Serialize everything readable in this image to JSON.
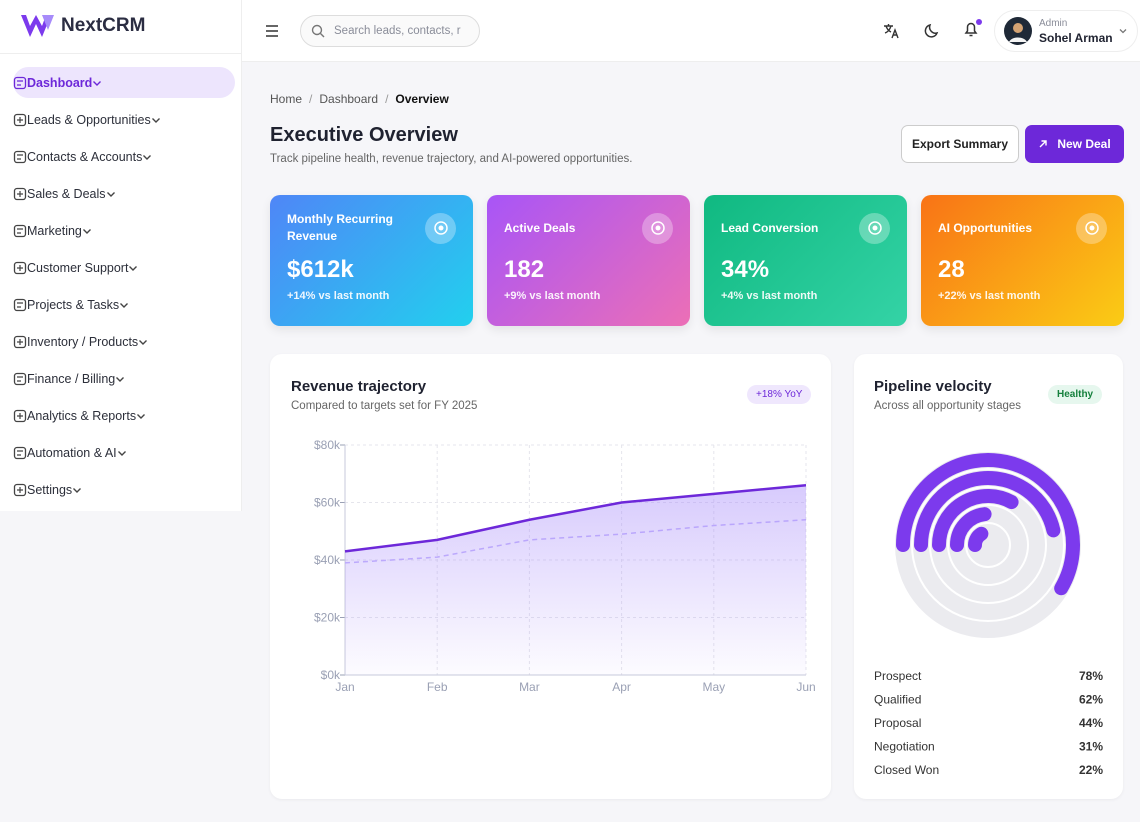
{
  "brand": "NextCRM",
  "search_placeholder": "Search leads, contacts, r",
  "user": {
    "role": "Admin",
    "name": "Sohel Arman"
  },
  "nav": [
    "Dashboard",
    "Leads & Opportunities",
    "Contacts & Accounts",
    "Sales & Deals",
    "Marketing",
    "Customer Support",
    "Projects & Tasks",
    "Inventory / Products",
    "Finance / Billing",
    "Analytics & Reports",
    "Automation & AI",
    "Settings"
  ],
  "breadcrumb": [
    "Home",
    "Dashboard",
    "Overview"
  ],
  "header": {
    "title": "Executive Overview",
    "subtitle": "Track pipeline health, revenue trajectory, and AI-powered opportunities.",
    "actions": [
      "Export Summary",
      "New Deal"
    ]
  },
  "kpis": [
    {
      "label": "Monthly Recurring Revenue",
      "value": "$612k",
      "change": "+14% vs last month"
    },
    {
      "label": "Active Deals",
      "value": "182",
      "change": "+9% vs last month"
    },
    {
      "label": "Lead Conversion",
      "value": "34%",
      "change": "+4% vs last month"
    },
    {
      "label": "AI Opportunities",
      "value": "28",
      "change": "+22% vs last month"
    }
  ],
  "chart_data": [
    {
      "type": "line",
      "title": "Revenue trajectory",
      "subtitle": "Compared to targets set for FY 2025",
      "badge": "+18% YoY",
      "categories": [
        "Jan",
        "Feb",
        "Mar",
        "Apr",
        "May",
        "Jun"
      ],
      "series": [
        {
          "color": "#6d28d9",
          "values": [
            43000,
            47000,
            54000,
            60000,
            63000,
            66000
          ]
        },
        {
          "color": "#c4b5fd",
          "values": [
            39000,
            41000,
            47000,
            49000,
            52000,
            54000
          ]
        }
      ],
      "ylim": [
        0,
        80000
      ],
      "yticks": [
        {
          "value": 0,
          "label": "$0k"
        },
        {
          "value": 20000,
          "label": "$20k"
        },
        {
          "value": 40000,
          "label": "$40k"
        },
        {
          "value": 60000,
          "label": "$60k"
        },
        {
          "value": 80000,
          "label": "$80k"
        }
      ],
      "grid": true
    },
    {
      "type": "radial_bar",
      "title": "Pipeline velocity",
      "subtitle": "Across all opportunity stages",
      "badge": "Healthy",
      "categories": [
        "Prospect",
        "Qualified",
        "Proposal",
        "Negotiation",
        "Closed Won"
      ],
      "values": [
        78,
        62,
        44,
        31,
        22
      ],
      "value_labels": [
        "78%",
        "62%",
        "44%",
        "31%",
        "22%"
      ],
      "color": "#7c3aed",
      "ylim": [
        0,
        100
      ]
    }
  ]
}
